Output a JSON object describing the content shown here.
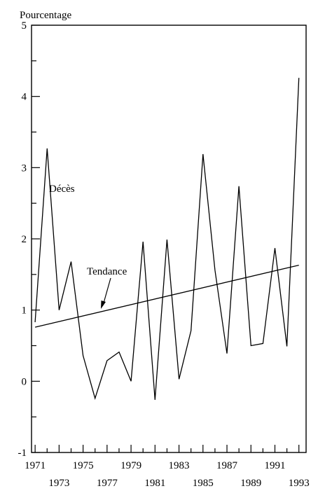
{
  "chart_data": {
    "type": "line",
    "title": "",
    "ylabel": "Pourcentage",
    "xlabel": "",
    "ylim": [
      -1,
      5
    ],
    "xlim": [
      1970.7,
      1993.6
    ],
    "y_ticks": [
      -1,
      0,
      1,
      2,
      3,
      4,
      5
    ],
    "x_ticks_lower": [
      1971,
      1975,
      1979,
      1983,
      1987,
      1991
    ],
    "x_ticks_upper": [
      1973,
      1977,
      1981,
      1985,
      1989,
      1993
    ],
    "grid": false,
    "series": [
      {
        "name": "Décès",
        "x": [
          1971,
          1972,
          1973,
          1974,
          1975,
          1976,
          1977,
          1978,
          1979,
          1980,
          1981,
          1982,
          1983,
          1984,
          1985,
          1986,
          1987,
          1988,
          1989,
          1990,
          1991,
          1992,
          1993
        ],
        "values": [
          0.83,
          3.27,
          1.0,
          1.68,
          0.36,
          -0.24,
          0.29,
          0.41,
          0.0,
          1.96,
          -0.26,
          1.99,
          0.03,
          0.71,
          3.19,
          1.56,
          0.39,
          2.74,
          0.5,
          0.53,
          1.87,
          0.49,
          4.26
        ]
      },
      {
        "name": "Tendance",
        "x": [
          1971,
          1993
        ],
        "values": [
          0.76,
          1.63
        ]
      }
    ],
    "annotations": [
      {
        "text": "Décès",
        "series": "Décès"
      },
      {
        "text": "Tendance",
        "series": "Tendance"
      }
    ]
  }
}
